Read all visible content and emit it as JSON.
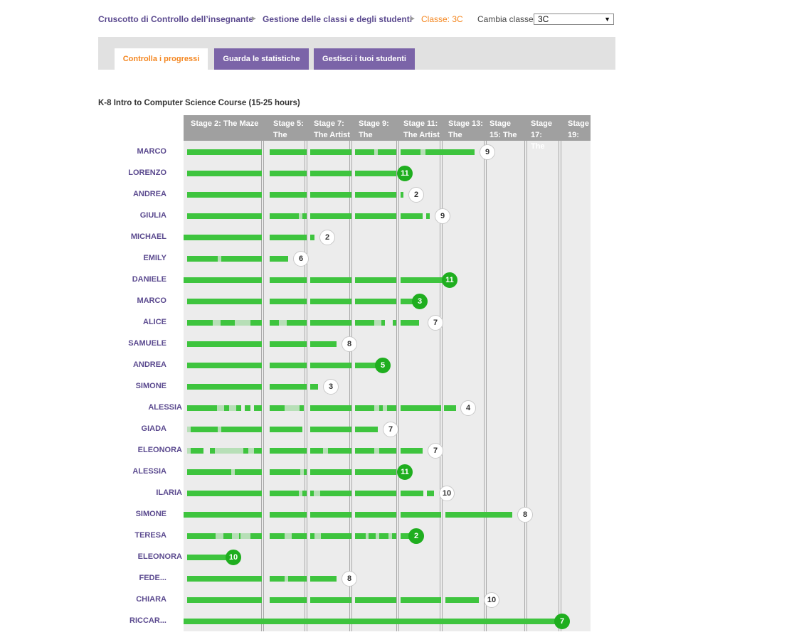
{
  "breadcrumb": {
    "dashboard": "Cruscotto di Controllo dell’insegnante",
    "sep": "►",
    "classes": "Gestione delle classi e degli studenti",
    "current": "Classe: 3C"
  },
  "class_switch": {
    "label": "Cambia classe:",
    "value": "3C"
  },
  "tabs": {
    "progress": "Controlla i progressi",
    "stats": "Guarda le statistiche",
    "students": "Gestisci i tuoi studenti"
  },
  "course": {
    "title": "K-8 Intro to Computer Science Course (15-25 hours)"
  },
  "stages": [
    "Stage 2: The Maze",
    "Stage 5: The",
    "Stage 7: The Artist",
    "Stage 9: The",
    "Stage 11: The Artist",
    "Stage 13: The",
    "Stage 15: The",
    "Stage 17: The",
    "Stage 19:"
  ],
  "students": [
    {
      "name": "MARCO",
      "badge": "9",
      "badge_done": false
    },
    {
      "name": "LORENZO",
      "badge": "11",
      "badge_done": true
    },
    {
      "name": "ANDREA",
      "badge": "2",
      "badge_done": false
    },
    {
      "name": "GIULIA",
      "badge": "9",
      "badge_done": false
    },
    {
      "name": "MICHAEL",
      "badge": "2",
      "badge_done": false
    },
    {
      "name": "EMILY",
      "badge": "6",
      "badge_done": false
    },
    {
      "name": "DANIELE",
      "badge": "11",
      "badge_done": true
    },
    {
      "name": "MARCO",
      "badge": "3",
      "badge_done": true
    },
    {
      "name": "ALICE",
      "badge": "7",
      "badge_done": false
    },
    {
      "name": "SAMUELE",
      "badge": "8",
      "badge_done": false
    },
    {
      "name": "ANDREA",
      "badge": "5",
      "badge_done": true
    },
    {
      "name": "SIMONE",
      "badge": "3",
      "badge_done": false
    },
    {
      "name": "ALESSIA",
      "badge": "4",
      "badge_done": false
    },
    {
      "name": "GIADA",
      "badge": "7",
      "badge_done": false
    },
    {
      "name": "ELEONORA",
      "badge": "7",
      "badge_done": false
    },
    {
      "name": "ALESSIA",
      "badge": "11",
      "badge_done": true
    },
    {
      "name": "ILARIA",
      "badge": "10",
      "badge_done": false
    },
    {
      "name": "SIMONE",
      "badge": "8",
      "badge_done": false
    },
    {
      "name": "TERESA",
      "badge": "2",
      "badge_done": true
    },
    {
      "name": "ELEONORA",
      "badge": "10",
      "badge_done": true
    },
    {
      "name": "FEDE...",
      "badge": "8",
      "badge_done": false
    },
    {
      "name": "CHIARA",
      "badge": "10",
      "badge_done": false
    },
    {
      "name": "RICCAR...",
      "badge": "7",
      "badge_done": true
    }
  ],
  "colors": {
    "accent_orange": "#f4861f",
    "brand_purple": "#7b64a8",
    "progress_green": "#3ec43e",
    "complete_green": "#1fae1f"
  }
}
